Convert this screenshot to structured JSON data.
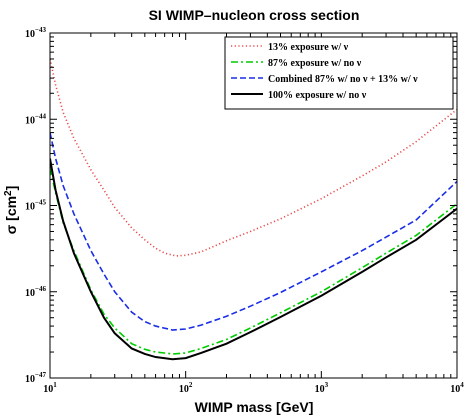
{
  "chart_data": {
    "type": "line",
    "title": "SI WIMP–nucleon cross section",
    "xlabel": "WIMP mass [GeV]",
    "ylabel": "σ [cm",
    "ylabel_sup": "2",
    "ylabel_close": "]",
    "x_scale": "log",
    "y_scale": "log",
    "xlim": [
      10,
      10000
    ],
    "ylim": [
      1e-47,
      1e-43
    ],
    "grid": false,
    "legend_position": "top-right",
    "x_ticks": [
      {
        "value": 10,
        "base": "10",
        "exp": "1"
      },
      {
        "value": 100,
        "base": "10",
        "exp": "2"
      },
      {
        "value": 1000,
        "base": "10",
        "exp": "3"
      },
      {
        "value": 10000,
        "base": "10",
        "exp": "4"
      }
    ],
    "y_ticks": [
      {
        "value": 1e-47,
        "base": "10",
        "exp": "−47"
      },
      {
        "value": 1e-46,
        "base": "10",
        "exp": "−46"
      },
      {
        "value": 1e-45,
        "base": "10",
        "exp": "−45"
      },
      {
        "value": 1e-44,
        "base": "10",
        "exp": "−44"
      },
      {
        "value": 1e-43,
        "base": "10",
        "exp": "−43"
      }
    ],
    "series": [
      {
        "name": "13% exposure w/ ν",
        "color": "#e84a4a",
        "style": "dotted",
        "points": [
          [
            10,
            5e-44
          ],
          [
            11,
            2.5e-44
          ],
          [
            12.5,
            1.2e-44
          ],
          [
            15,
            6e-45
          ],
          [
            20,
            2.6e-45
          ],
          [
            25,
            1.5e-45
          ],
          [
            30,
            9.5e-46
          ],
          [
            40,
            5.5e-46
          ],
          [
            50,
            4e-46
          ],
          [
            60,
            3.2e-46
          ],
          [
            70,
            2.8e-46
          ],
          [
            85,
            2.6e-46
          ],
          [
            100,
            2.65e-46
          ],
          [
            130,
            2.9e-46
          ],
          [
            200,
            3.9e-46
          ],
          [
            300,
            5e-46
          ],
          [
            500,
            7e-46
          ],
          [
            1000,
            1.2e-45
          ],
          [
            2000,
            2.2e-45
          ],
          [
            3000,
            3.2e-45
          ],
          [
            5000,
            5.5e-45
          ],
          [
            10000,
            1.3e-44
          ]
        ]
      },
      {
        "name": "87% exposure w/ no ν",
        "color": "#00cc00",
        "style": "dashdot",
        "points": [
          [
            10,
            2.7e-45
          ],
          [
            11,
            1.4e-45
          ],
          [
            12.5,
            6.3e-46
          ],
          [
            15,
            3e-46
          ],
          [
            20,
            1.05e-46
          ],
          [
            25,
            5.5e-47
          ],
          [
            30,
            3.8e-47
          ],
          [
            40,
            2.5e-47
          ],
          [
            50,
            2.15e-47
          ],
          [
            60,
            2e-47
          ],
          [
            80,
            1.9e-47
          ],
          [
            100,
            1.95e-47
          ],
          [
            130,
            2.2e-47
          ],
          [
            200,
            2.8e-47
          ],
          [
            300,
            3.8e-47
          ],
          [
            500,
            5.7e-47
          ],
          [
            1000,
            1e-46
          ],
          [
            2000,
            1.9e-46
          ],
          [
            3000,
            2.8e-46
          ],
          [
            5000,
            4.5e-46
          ],
          [
            10000,
            1.05e-45
          ]
        ]
      },
      {
        "name": "Combined 87% w/ no ν + 13% w/ ν",
        "color": "#1a2ee6",
        "style": "dashed",
        "points": [
          [
            10,
            7e-45
          ],
          [
            11,
            3.5e-45
          ],
          [
            12.5,
            1.7e-45
          ],
          [
            15,
            8e-46
          ],
          [
            20,
            3e-46
          ],
          [
            25,
            1.6e-46
          ],
          [
            30,
            1e-46
          ],
          [
            40,
            5.8e-47
          ],
          [
            50,
            4.5e-47
          ],
          [
            60,
            4e-47
          ],
          [
            80,
            3.6e-47
          ],
          [
            100,
            3.7e-47
          ],
          [
            130,
            4.1e-47
          ],
          [
            200,
            5.2e-47
          ],
          [
            300,
            6.8e-47
          ],
          [
            500,
            9.8e-47
          ],
          [
            1000,
            1.7e-46
          ],
          [
            2000,
            3e-46
          ],
          [
            3000,
            4.3e-46
          ],
          [
            5000,
            6.8e-46
          ],
          [
            10000,
            1.9e-45
          ]
        ]
      },
      {
        "name": "100% exposure w/ no ν",
        "color": "#000000",
        "style": "solid",
        "points": [
          [
            10,
            3.5e-45
          ],
          [
            11,
            1.5e-45
          ],
          [
            12.5,
            6.6e-46
          ],
          [
            15,
            2.8e-46
          ],
          [
            20,
            1e-46
          ],
          [
            25,
            5e-47
          ],
          [
            30,
            3.3e-47
          ],
          [
            40,
            2.2e-47
          ],
          [
            50,
            1.9e-47
          ],
          [
            60,
            1.75e-47
          ],
          [
            80,
            1.65e-47
          ],
          [
            100,
            1.7e-47
          ],
          [
            130,
            1.95e-47
          ],
          [
            200,
            2.5e-47
          ],
          [
            300,
            3.4e-47
          ],
          [
            500,
            5.1e-47
          ],
          [
            1000,
            9e-47
          ],
          [
            2000,
            1.7e-46
          ],
          [
            3000,
            2.5e-46
          ],
          [
            5000,
            4e-46
          ],
          [
            10000,
            9.2e-46
          ]
        ]
      }
    ]
  }
}
